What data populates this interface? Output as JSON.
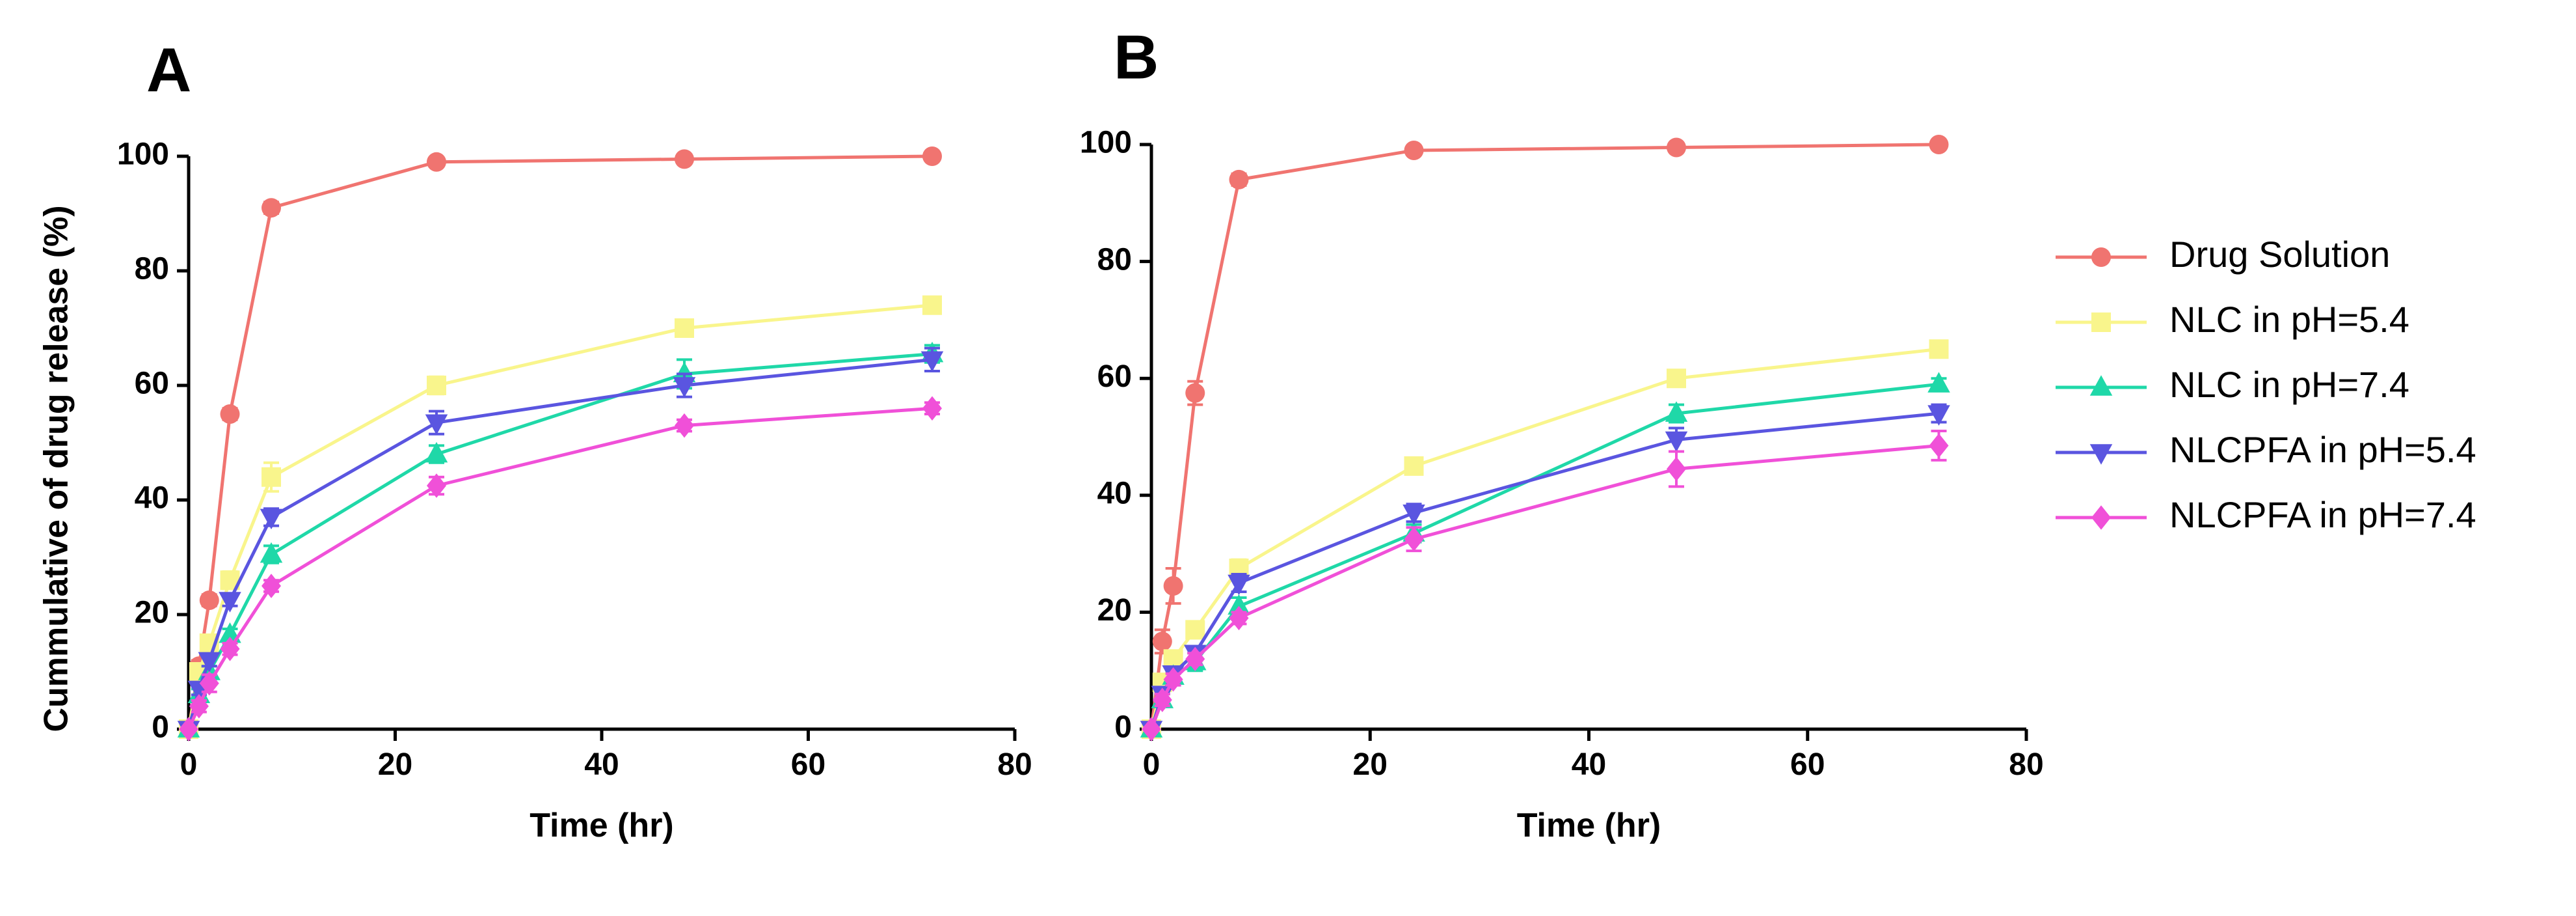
{
  "chart_data": [
    {
      "type": "line",
      "panel": "A",
      "title": "",
      "xlabel": "Time (hr)",
      "ylabel": "Cummulative of drug release (%)",
      "xlim": [
        0,
        80
      ],
      "ylim": [
        0,
        100
      ],
      "xticks": [
        0,
        20,
        40,
        60,
        80
      ],
      "yticks": [
        0,
        20,
        40,
        60,
        80,
        100
      ],
      "grid": false,
      "x": [
        0,
        1,
        2,
        4,
        8,
        24,
        48,
        72
      ],
      "series": [
        {
          "name": "Drug Solution",
          "color": "#F07470",
          "marker": "circle",
          "values": [
            0,
            11,
            22.5,
            55,
            91,
            99,
            99.5,
            100
          ],
          "errors": [
            0,
            1,
            1,
            1,
            1,
            0.5,
            0.5,
            0.5
          ]
        },
        {
          "name": "NLC in pH=5.4",
          "color": "#F9F58C",
          "marker": "square",
          "values": [
            0,
            10,
            15,
            26,
            44,
            60,
            70,
            74
          ],
          "errors": [
            0,
            1,
            1,
            1.5,
            2.5,
            1.5,
            1,
            1
          ]
        },
        {
          "name": "NLC in pH=7.4",
          "color": "#1FD8A8",
          "marker": "triangle-up",
          "values": [
            0,
            6,
            10,
            16.5,
            30.5,
            48,
            62,
            65.5
          ],
          "errors": [
            0,
            1,
            1,
            1,
            1.5,
            1.5,
            2.5,
            1.5
          ]
        },
        {
          "name": "NLCPFA in pH=5.4",
          "color": "#5A55E0",
          "marker": "triangle-down",
          "values": [
            0,
            7,
            12,
            22.5,
            37,
            53.5,
            60,
            64.5
          ],
          "errors": [
            0,
            1,
            1,
            1,
            1.5,
            2,
            2,
            2
          ]
        },
        {
          "name": "NLCPFA in pH=7.4",
          "color": "#F050D8",
          "marker": "diamond",
          "values": [
            0,
            4,
            8,
            14,
            25,
            42.5,
            53,
            56
          ],
          "errors": [
            0,
            1,
            1.5,
            1,
            1,
            1.5,
            1,
            1
          ]
        }
      ]
    },
    {
      "type": "line",
      "panel": "B",
      "title": "",
      "xlabel": "Time (hr)",
      "ylabel": "",
      "xlim": [
        0,
        80
      ],
      "ylim": [
        0,
        100
      ],
      "xticks": [
        0,
        20,
        40,
        60,
        80
      ],
      "yticks": [
        0,
        20,
        40,
        60,
        80,
        100
      ],
      "grid": false,
      "x": [
        0,
        1,
        2,
        4,
        8,
        24,
        48,
        72
      ],
      "series": [
        {
          "name": "Drug Solution",
          "color": "#F07470",
          "marker": "circle",
          "values": [
            0,
            15,
            24.5,
            57.5,
            94,
            99,
            99.5,
            100
          ],
          "errors": [
            0,
            2,
            3,
            2,
            1,
            0.5,
            0.5,
            0.5
          ]
        },
        {
          "name": "NLC in pH=5.4",
          "color": "#F9F58C",
          "marker": "square",
          "values": [
            0,
            8,
            12,
            17,
            27.5,
            45,
            60,
            65
          ],
          "errors": [
            0,
            1,
            1,
            1,
            1.5,
            1,
            1,
            1
          ]
        },
        {
          "name": "NLC in pH=7.4",
          "color": "#1FD8A8",
          "marker": "triangle-up",
          "values": [
            0,
            5,
            9,
            11.5,
            21,
            33.5,
            54,
            59
          ],
          "errors": [
            0,
            1,
            1,
            1.5,
            1.5,
            1.5,
            1.5,
            1
          ]
        },
        {
          "name": "NLCPFA in pH=5.4",
          "color": "#5A55E0",
          "marker": "triangle-down",
          "values": [
            0,
            6,
            9.5,
            13,
            25,
            37,
            49.5,
            54
          ],
          "errors": [
            0,
            1,
            1,
            1,
            1.5,
            1.5,
            2,
            1.5
          ]
        },
        {
          "name": "NLCPFA in pH=7.4",
          "color": "#F050D8",
          "marker": "diamond",
          "values": [
            0,
            5,
            8.5,
            12,
            19,
            32.5,
            44.5,
            48.5
          ],
          "errors": [
            0,
            1,
            1,
            1,
            1,
            2,
            3,
            2.5
          ]
        }
      ]
    }
  ],
  "legend": {
    "placement": "right",
    "items": [
      "Drug Solution",
      "NLC in pH=5.4",
      "NLC in pH=7.4",
      "NLCPFA in pH=5.4",
      "NLCPFA in pH=7.4"
    ]
  }
}
